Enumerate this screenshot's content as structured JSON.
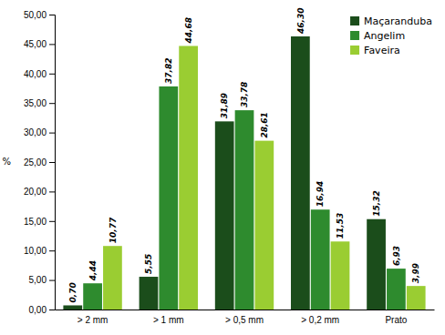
{
  "chart_data": {
    "type": "bar",
    "categories": [
      "> 2 mm",
      "> 1 mm",
      "> 0,5 mm",
      "> 0,2 mm",
      "Prato"
    ],
    "series": [
      {
        "name": "Maçaranduba",
        "color": "#1b4d1b",
        "values": [
          0.7,
          5.55,
          31.89,
          46.3,
          15.32
        ],
        "value_labels": [
          "0,70",
          "5,55",
          "31,89",
          "46,30",
          "15,32"
        ]
      },
      {
        "name": "Angelim",
        "color": "#2e8b2e",
        "values": [
          4.44,
          37.82,
          33.78,
          16.94,
          6.93
        ],
        "value_labels": [
          "4,44",
          "37,82",
          "33,78",
          "16,94",
          "6,93"
        ]
      },
      {
        "name": "Faveira",
        "color": "#9acd32",
        "values": [
          10.77,
          44.68,
          28.61,
          11.53,
          3.99
        ],
        "value_labels": [
          "10,77",
          "44,68",
          "28,61",
          "11,53",
          "3,99"
        ]
      }
    ],
    "ylabel": "%",
    "ylim": [
      0,
      50
    ],
    "yticks": [
      {
        "value": 0,
        "label": "0,00"
      },
      {
        "value": 5,
        "label": "5,00"
      },
      {
        "value": 10,
        "label": "10,00"
      },
      {
        "value": 15,
        "label": "15,00"
      },
      {
        "value": 20,
        "label": "20,00"
      },
      {
        "value": 25,
        "label": "25,00"
      },
      {
        "value": 30,
        "label": "30,00"
      },
      {
        "value": 35,
        "label": "35,00"
      },
      {
        "value": 40,
        "label": "40,00"
      },
      {
        "value": 45,
        "label": "45,00"
      },
      {
        "value": 50,
        "label": "50,00"
      }
    ],
    "data_labels": true,
    "legend": "upper right",
    "grid": false
  }
}
